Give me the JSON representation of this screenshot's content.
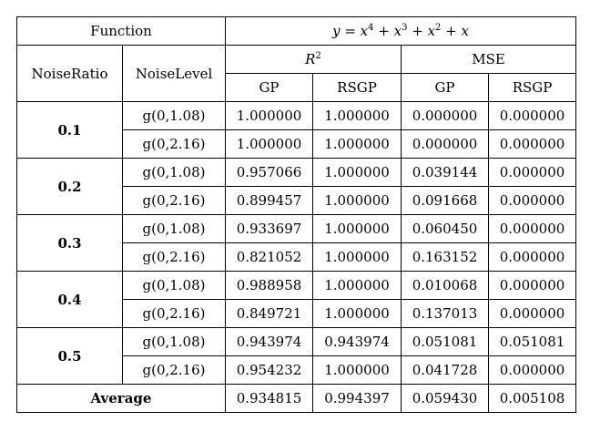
{
  "header": {
    "function_label": "Function",
    "function_expr": {
      "y": "y",
      "eq": " = ",
      "x": "x",
      "plus": " + ",
      "e4": "4",
      "e3": "3",
      "e2": "2"
    },
    "r2_label": "R",
    "r2_exp": "2",
    "mse_label": "MSE",
    "noise_ratio_label": "NoiseRatio",
    "noise_level_label": "NoiseLevel",
    "gp_label": "GP",
    "rsgp_label": "RSGP"
  },
  "rows": [
    {
      "ratio": "0.1",
      "levels": [
        {
          "level": "g(0,1.08)",
          "r2_gp": "1.000000",
          "r2_rsgp": "1.000000",
          "mse_gp": "0.000000",
          "mse_rsgp": "0.000000"
        },
        {
          "level": "g(0,2.16)",
          "r2_gp": "1.000000",
          "r2_rsgp": "1.000000",
          "mse_gp": "0.000000",
          "mse_rsgp": "0.000000"
        }
      ]
    },
    {
      "ratio": "0.2",
      "levels": [
        {
          "level": "g(0,1.08)",
          "r2_gp": "0.957066",
          "r2_rsgp": "1.000000",
          "mse_gp": "0.039144",
          "mse_rsgp": "0.000000"
        },
        {
          "level": "g(0,2.16)",
          "r2_gp": "0.899457",
          "r2_rsgp": "1.000000",
          "mse_gp": "0.091668",
          "mse_rsgp": "0.000000"
        }
      ]
    },
    {
      "ratio": "0.3",
      "levels": [
        {
          "level": "g(0,1.08)",
          "r2_gp": "0.933697",
          "r2_rsgp": "1.000000",
          "mse_gp": "0.060450",
          "mse_rsgp": "0.000000"
        },
        {
          "level": "g(0,2.16)",
          "r2_gp": "0.821052",
          "r2_rsgp": "1.000000",
          "mse_gp": "0.163152",
          "mse_rsgp": "0.000000"
        }
      ]
    },
    {
      "ratio": "0.4",
      "levels": [
        {
          "level": "g(0,1.08)",
          "r2_gp": "0.988958",
          "r2_rsgp": "1.000000",
          "mse_gp": "0.010068",
          "mse_rsgp": "0.000000"
        },
        {
          "level": "g(0,2.16)",
          "r2_gp": "0.849721",
          "r2_rsgp": "1.000000",
          "mse_gp": "0.137013",
          "mse_rsgp": "0.000000"
        }
      ]
    },
    {
      "ratio": "0.5",
      "levels": [
        {
          "level": "g(0,1.08)",
          "r2_gp": "0.943974",
          "r2_rsgp": "0.943974",
          "mse_gp": "0.051081",
          "mse_rsgp": "0.051081"
        },
        {
          "level": "g(0,2.16)",
          "r2_gp": "0.954232",
          "r2_rsgp": "1.000000",
          "mse_gp": "0.041728",
          "mse_rsgp": "0.000000"
        }
      ]
    }
  ],
  "average": {
    "label": "Average",
    "r2_gp": "0.934815",
    "r2_rsgp": "0.994397",
    "mse_gp": "0.059430",
    "mse_rsgp": "0.005108"
  }
}
